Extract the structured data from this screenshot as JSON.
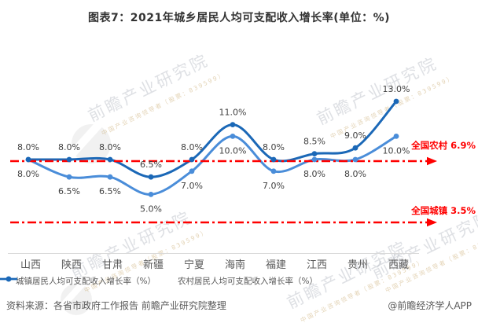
{
  "title": "图表7：2021年城乡居民人均可支配收入增长率(单位：%)",
  "chart_data": {
    "type": "line",
    "unit": "%",
    "categories": [
      "山西",
      "陕西",
      "甘肃",
      "新疆",
      "宁夏",
      "海南",
      "福建",
      "江西",
      "贵州",
      "西藏"
    ],
    "series": [
      {
        "key": "urban",
        "name": "城镇居民人均可支配收入增长率（%）",
        "color": "#4A8DD9",
        "values": [
          8.0,
          6.5,
          6.5,
          5.0,
          7.0,
          10.0,
          7.0,
          8.0,
          8.0,
          10.0
        ],
        "label_position": "below"
      },
      {
        "key": "rural",
        "name": "农村居民人均可支配收入增长率（%）",
        "color": "#1B68B7",
        "values": [
          8.0,
          8.0,
          8.0,
          6.5,
          8.0,
          11.0,
          8.0,
          8.5,
          9.0,
          13.0
        ],
        "label_position": "above"
      }
    ],
    "reference_lines": [
      {
        "key": "rural-national",
        "label": "全国农村 6.9%",
        "value": 6.9,
        "color": "#FF0000"
      },
      {
        "key": "urban-national",
        "label": "全国城镇 3.5%",
        "value": 3.5,
        "color": "#FF0000"
      }
    ],
    "smooth": true,
    "markers": true,
    "grid": false,
    "y_axis_visible": false,
    "legend_position": "bottom",
    "label_color": "#404040",
    "axis_label_color": "#595959",
    "axis_line_color": "#d9d9d9"
  },
  "footer": {
    "source": "资料来源：各省市政府工作报告 前瞻产业研究院整理",
    "credit": "@前瞻经济学人APP"
  },
  "watermark": {
    "text": "前瞻产业研究院",
    "subtext": "中国产业咨询领导者（股票：839599）"
  }
}
